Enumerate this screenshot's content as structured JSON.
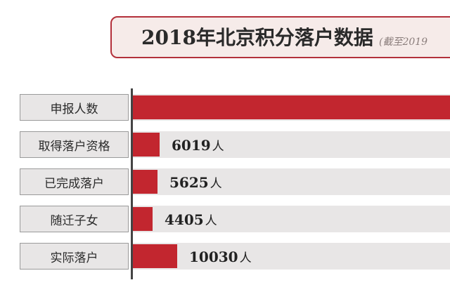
{
  "chart_data": {
    "type": "bar",
    "orientation": "horizontal",
    "title": "2018年北京积分落户数据",
    "subtitle": "(截至2019",
    "categories": [
      "申报人数",
      "取得落户资格",
      "已完成落户",
      "随迁子女",
      "实际落户"
    ],
    "values": [
      null,
      6019,
      5625,
      4405,
      10030
    ],
    "value_labels": [
      "",
      "6019",
      "5625",
      "4405",
      "10030"
    ],
    "unit": "人",
    "colors": {
      "bar": "#c2262f",
      "track": "#e8e6e6",
      "title_border": "#b3303a"
    }
  }
}
